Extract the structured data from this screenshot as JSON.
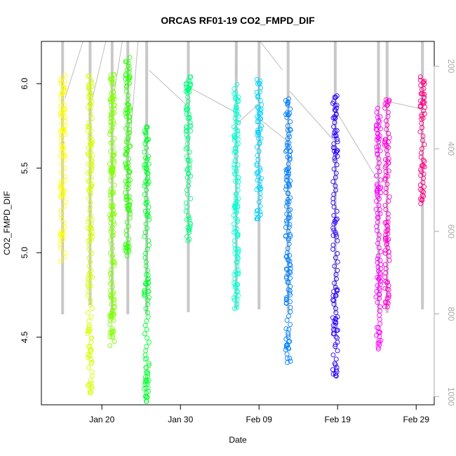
{
  "chart_data": {
    "type": "scatter",
    "title": "ORCAS RF01-19 CO2_FMPD_DIF",
    "xlabel": "Date",
    "ylabel": "CO2_FMPD_DIF",
    "x_ticks": [
      "Jan 20",
      "Jan 30",
      "Feb 09",
      "Feb 19",
      "Feb 29"
    ],
    "x_tick_day": [
      20,
      30,
      40,
      50,
      60
    ],
    "xlim_day": [
      12.3,
      62.3
    ],
    "y_ticks": [
      "4.5",
      "5.0",
      "5.5",
      "6.0"
    ],
    "y_tick_values": [
      4.5,
      5.0,
      5.5,
      6.0
    ],
    "ylim": [
      4.1,
      6.25
    ],
    "right_axis": {
      "ticks": [
        "200",
        "400",
        "600",
        "800",
        "1000"
      ],
      "values": [
        200,
        400,
        600,
        800,
        1000
      ],
      "lim": [
        1020,
        140
      ],
      "color": "#aaaaaa"
    },
    "grid": false,
    "marker": "open-circle",
    "series": [
      {
        "day": 15.0,
        "color": "#ffff00",
        "min": 4.95,
        "max": 6.06,
        "clusters": [
          [
            5.1,
            0.06
          ],
          [
            5.4,
            0.08
          ],
          [
            5.75,
            0.2
          ],
          [
            6.0,
            0.05
          ]
        ]
      },
      {
        "day": 18.5,
        "color": "#d4ff00",
        "min": 4.17,
        "max": 6.07,
        "clusters": [
          [
            4.2,
            0.03
          ],
          [
            4.45,
            0.12
          ],
          [
            4.85,
            0.05
          ],
          [
            5.15,
            0.08
          ],
          [
            5.55,
            0.2
          ],
          [
            5.95,
            0.1
          ]
        ]
      },
      {
        "day": 21.3,
        "color": "#80ff00",
        "min": 4.45,
        "max": 6.07,
        "clusters": [
          [
            4.5,
            0.04
          ],
          [
            4.8,
            0.2
          ],
          [
            5.3,
            0.2
          ],
          [
            5.7,
            0.25
          ],
          [
            6.0,
            0.06
          ]
        ]
      },
      {
        "day": 23.3,
        "color": "#2bff00",
        "min": 4.98,
        "max": 6.17,
        "clusters": [
          [
            5.05,
            0.07
          ],
          [
            5.4,
            0.2
          ],
          [
            5.75,
            0.15
          ],
          [
            6.05,
            0.1
          ]
        ]
      },
      {
        "day": 25.7,
        "color": "#00ff2b",
        "min": 4.12,
        "max": 5.77,
        "clusters": [
          [
            4.15,
            0.05
          ],
          [
            4.3,
            0.1
          ],
          [
            4.8,
            0.1
          ],
          [
            5.25,
            0.05
          ],
          [
            5.5,
            0.1
          ],
          [
            5.7,
            0.06
          ]
        ]
      },
      {
        "day": 31.0,
        "color": "#00ff80",
        "min": 5.07,
        "max": 6.04,
        "clusters": [
          [
            5.15,
            0.07
          ],
          [
            5.5,
            0.05
          ],
          [
            5.8,
            0.2
          ],
          [
            6.0,
            0.05
          ]
        ]
      },
      {
        "day": 37.1,
        "color": "#00ffd4",
        "min": 4.67,
        "max": 6.0,
        "clusters": [
          [
            4.75,
            0.08
          ],
          [
            5.1,
            0.25
          ],
          [
            5.55,
            0.15
          ],
          [
            5.85,
            0.13
          ]
        ]
      },
      {
        "day": 40.0,
        "color": "#00d4ff",
        "min": 5.2,
        "max": 6.03,
        "clusters": [
          [
            5.22,
            0.03
          ],
          [
            5.45,
            0.08
          ],
          [
            5.75,
            0.15
          ],
          [
            5.97,
            0.06
          ]
        ]
      },
      {
        "day": 43.7,
        "color": "#0080ff",
        "min": 4.35,
        "max": 5.92,
        "clusters": [
          [
            4.45,
            0.1
          ],
          [
            4.85,
            0.15
          ],
          [
            5.2,
            0.12
          ],
          [
            5.55,
            0.2
          ],
          [
            5.85,
            0.07
          ]
        ]
      },
      {
        "day": 49.7,
        "color": "#2b00ff",
        "min": 4.27,
        "max": 5.94,
        "clusters": [
          [
            4.3,
            0.05
          ],
          [
            4.55,
            0.1
          ],
          [
            4.75,
            0.05
          ],
          [
            5.15,
            0.05
          ],
          [
            5.65,
            0.1
          ],
          [
            5.85,
            0.08
          ]
        ]
      },
      {
        "day": 55.2,
        "color": "#ff00ff",
        "min": 4.43,
        "max": 5.86,
        "clusters": [
          [
            4.5,
            0.07
          ],
          [
            4.85,
            0.12
          ],
          [
            5.3,
            0.1
          ],
          [
            5.7,
            0.12
          ]
        ]
      },
      {
        "day": 56.3,
        "color": "#ff00d4",
        "min": 4.68,
        "max": 5.91,
        "clusters": [
          [
            4.75,
            0.08
          ],
          [
            5.1,
            0.12
          ],
          [
            5.55,
            0.12
          ],
          [
            5.88,
            0.03
          ]
        ]
      },
      {
        "day": 60.8,
        "color": "#ff0080",
        "min": 5.29,
        "max": 6.05,
        "clusters": [
          [
            5.35,
            0.06
          ],
          [
            5.5,
            0.05
          ],
          [
            5.85,
            0.1
          ],
          [
            5.98,
            0.06
          ]
        ]
      }
    ]
  }
}
